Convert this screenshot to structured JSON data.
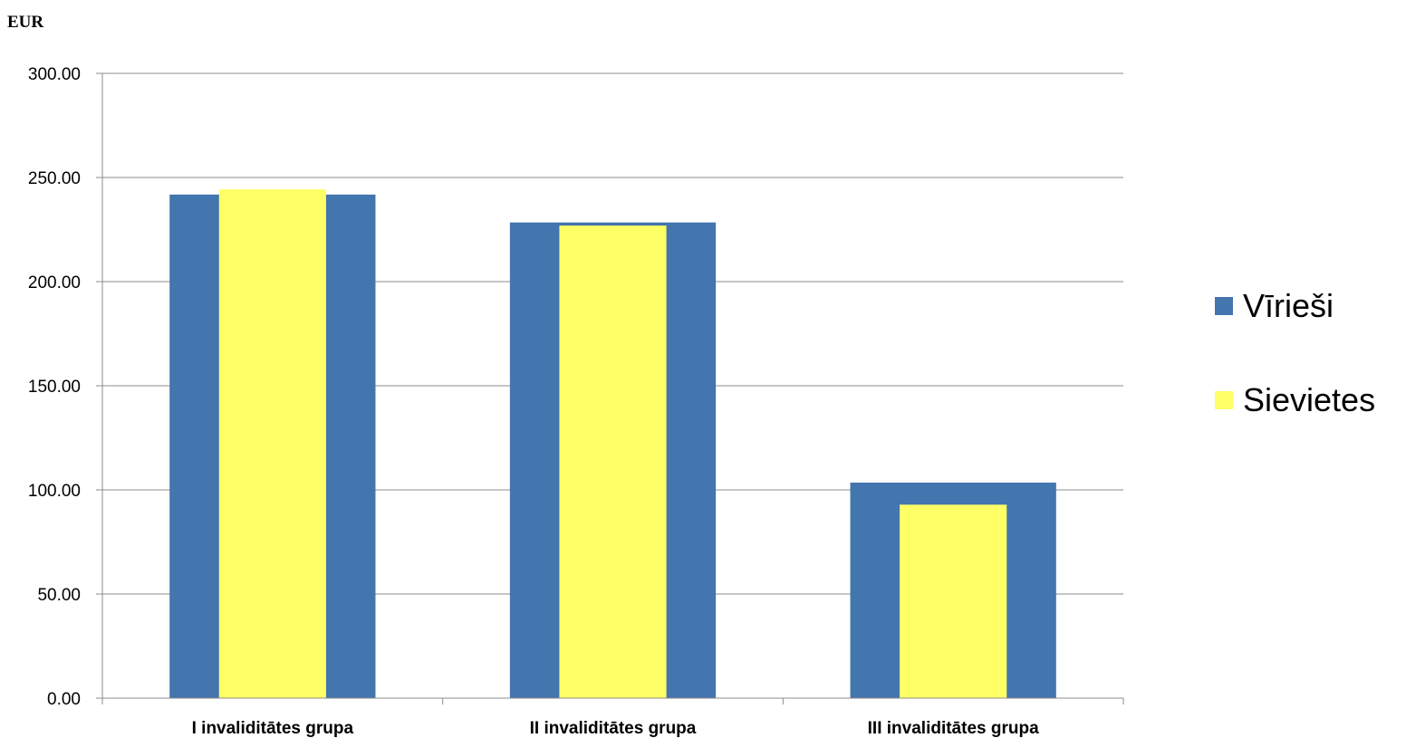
{
  "chart_data": {
    "type": "bar",
    "unit_label": "EUR",
    "title": "",
    "xlabel": "",
    "ylabel": "",
    "categories": [
      "I invaliditātes grupa",
      "II invaliditātes grupa",
      "III invaliditātes grupa"
    ],
    "series": [
      {
        "name": "Vīrieši",
        "values": [
          241.8,
          228.4,
          103.5
        ],
        "color": "#4375AE"
      },
      {
        "name": "Sievietes",
        "values": [
          244.3,
          226.9,
          92.9
        ],
        "color": "#FFFF66"
      }
    ],
    "ylim": [
      0,
      300
    ],
    "yticks": [
      0,
      50,
      100,
      150,
      200,
      250,
      300
    ],
    "ytick_labels": [
      "0.00",
      "50.00",
      "100.00",
      "150.00",
      "200.00",
      "250.00",
      "300.00"
    ],
    "grid": true,
    "legend_position": "right",
    "overlap": "second series drawn narrower in front of first"
  }
}
